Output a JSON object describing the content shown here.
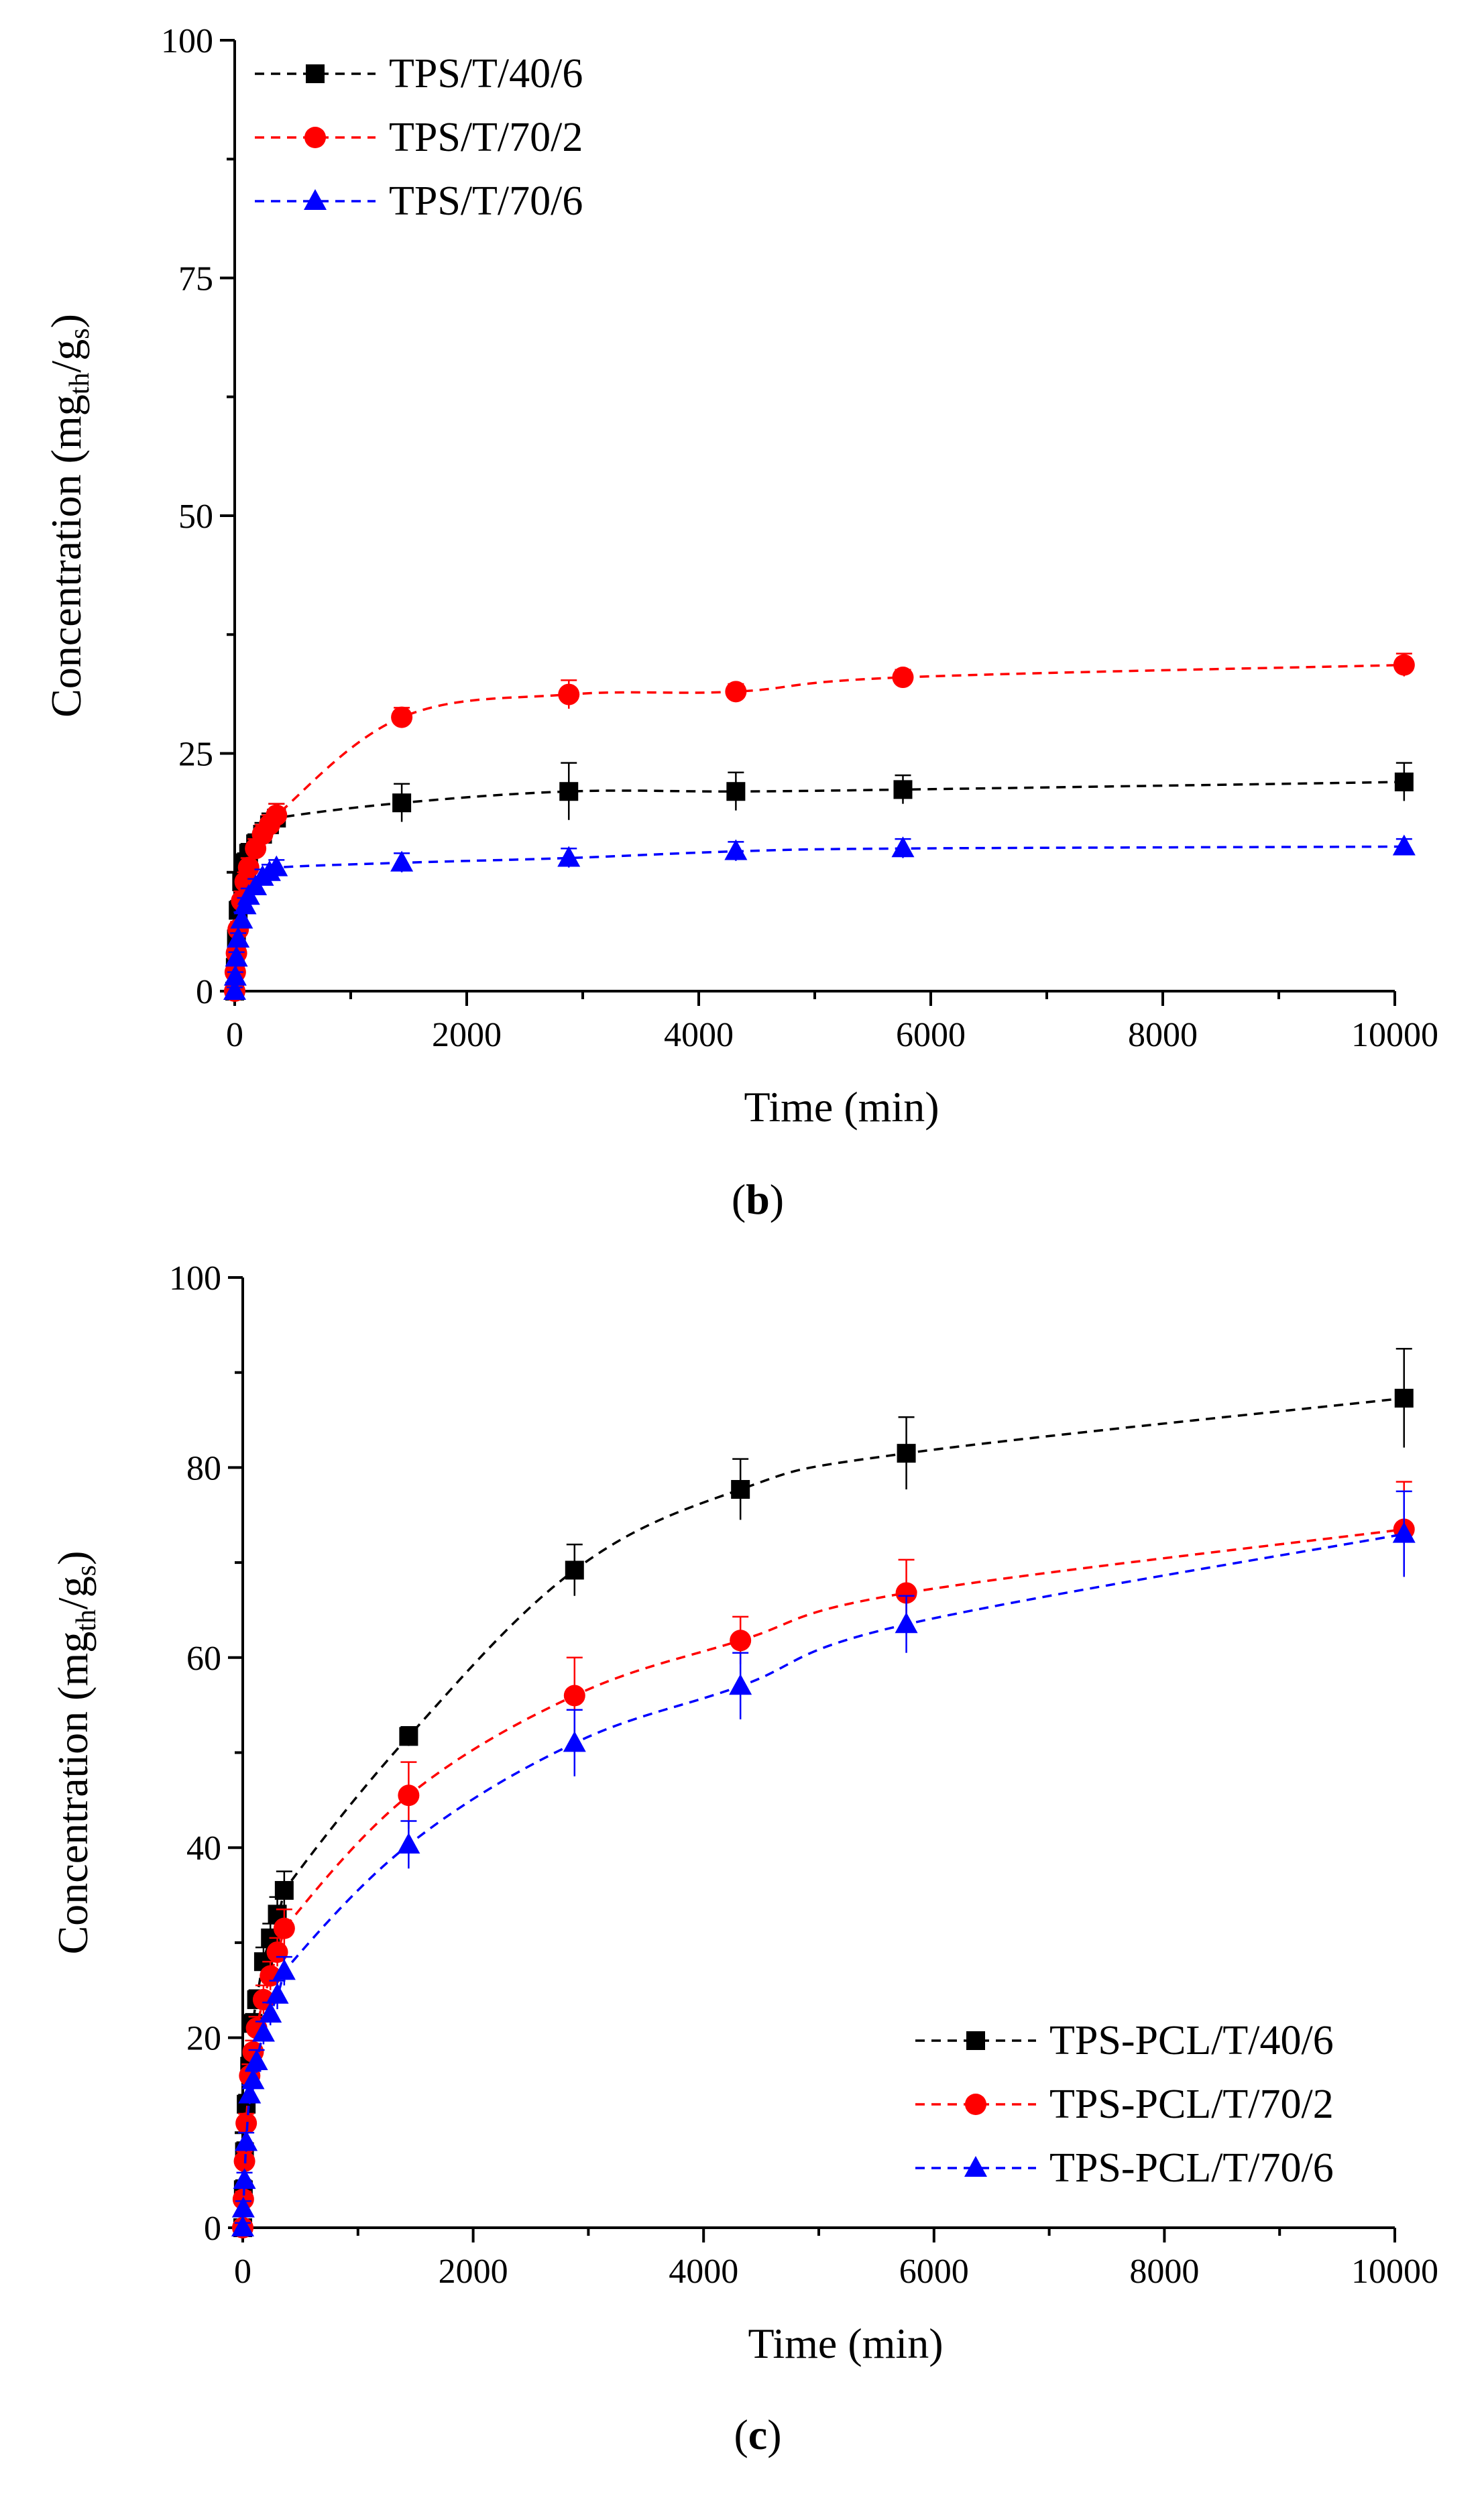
{
  "chart_data": [
    {
      "type": "line",
      "panel_label": "b",
      "xlabel": "Time (min)",
      "ylabel": {
        "main": "Concentration (mg",
        "sub1": "th",
        "mid": "/g",
        "sub2": "s",
        "end": ")"
      },
      "xlim": [
        0,
        10000
      ],
      "ylim": [
        0,
        100
      ],
      "xticks": [
        0,
        2000,
        4000,
        6000,
        8000,
        10000
      ],
      "yticks": [
        0,
        25,
        50,
        75,
        100
      ],
      "legend_position": "top-left",
      "series": [
        {
          "name": "TPS/T/40/6",
          "color": "#000000",
          "marker": "square",
          "x": [
            0,
            5,
            15,
            30,
            60,
            90,
            120,
            180,
            240,
            300,
            360,
            1440,
            2880,
            4320,
            5760,
            10080
          ],
          "y": [
            0,
            2.5,
            5.5,
            8.5,
            11.5,
            13.5,
            14.5,
            15.5,
            16.5,
            17.5,
            18.2,
            19.8,
            21.0,
            21.0,
            21.2,
            22.0
          ],
          "err": [
            0.5,
            0.6,
            0.8,
            1.0,
            1.0,
            1.0,
            1.0,
            1.0,
            1.2,
            1.2,
            1.5,
            2.0,
            3.0,
            2.0,
            1.5,
            2.0
          ]
        },
        {
          "name": "TPS/T/70/2",
          "color": "#ff0000",
          "marker": "circle",
          "x": [
            0,
            5,
            15,
            30,
            60,
            90,
            120,
            180,
            240,
            300,
            360,
            1440,
            2880,
            4320,
            5760,
            10080
          ],
          "y": [
            0,
            2.0,
            4.0,
            6.5,
            9.5,
            11.5,
            13.0,
            15.0,
            16.5,
            17.5,
            18.5,
            28.8,
            31.2,
            31.5,
            33.0,
            34.3
          ],
          "err": [
            0.5,
            0.5,
            0.6,
            0.8,
            1.0,
            1.0,
            1.0,
            1.0,
            1.0,
            1.0,
            1.2,
            1.0,
            1.5,
            0.8,
            0.8,
            1.2
          ]
        },
        {
          "name": "TPS/T/70/6",
          "color": "#0000ff",
          "marker": "triangle",
          "x": [
            0,
            5,
            15,
            30,
            60,
            90,
            120,
            180,
            240,
            300,
            360,
            1440,
            2880,
            4320,
            5760,
            10080
          ],
          "y": [
            0,
            1.5,
            3.5,
            5.5,
            7.5,
            9.0,
            10.0,
            11.0,
            12.0,
            12.5,
            13.0,
            13.5,
            14.0,
            14.7,
            15.0,
            15.2
          ],
          "err": [
            0.4,
            0.5,
            0.6,
            0.6,
            0.8,
            0.8,
            0.8,
            0.8,
            0.8,
            0.8,
            0.8,
            1.0,
            1.0,
            1.0,
            1.0,
            0.8
          ]
        }
      ]
    },
    {
      "type": "line",
      "panel_label": "c",
      "xlabel": "Time (min)",
      "ylabel": {
        "main": "Concentration (mg",
        "sub1": "th",
        "mid": "/g",
        "sub2": "s",
        "end": ")"
      },
      "xlim": [
        0,
        10000
      ],
      "ylim": [
        0,
        100
      ],
      "xticks": [
        0,
        2000,
        4000,
        6000,
        8000,
        10000
      ],
      "yticks": [
        0,
        20,
        40,
        60,
        80,
        100
      ],
      "legend_position": "bottom-right",
      "series": [
        {
          "name": "TPS-PCL/T/40/6",
          "color": "#000000",
          "marker": "square",
          "x": [
            0,
            5,
            15,
            30,
            60,
            90,
            120,
            180,
            240,
            300,
            360,
            1440,
            2880,
            4320,
            5760,
            10080
          ],
          "y": [
            0,
            4.0,
            8.0,
            13.0,
            17.0,
            21.5,
            24.0,
            28.0,
            30.5,
            33.0,
            35.5,
            51.7,
            69.2,
            77.7,
            81.5,
            87.3
          ],
          "err": [
            0.5,
            1.0,
            1.0,
            1.0,
            1.0,
            1.0,
            1.0,
            1.5,
            1.5,
            1.8,
            2.0,
            1.0,
            2.7,
            3.2,
            3.8,
            5.2
          ]
        },
        {
          "name": "TPS-PCL/T/70/2",
          "color": "#ff0000",
          "marker": "circle",
          "x": [
            0,
            5,
            15,
            30,
            60,
            90,
            120,
            180,
            240,
            300,
            360,
            1440,
            2880,
            4320,
            5760,
            10080
          ],
          "y": [
            0,
            3.0,
            7.0,
            11.0,
            16.0,
            18.5,
            21.0,
            24.0,
            26.5,
            29.0,
            31.5,
            45.5,
            56.0,
            61.8,
            66.8,
            73.5
          ],
          "err": [
            0.5,
            0.8,
            1.0,
            1.0,
            1.2,
            1.2,
            1.2,
            1.5,
            1.5,
            1.5,
            2.0,
            3.5,
            4.0,
            2.5,
            3.5,
            5.0
          ]
        },
        {
          "name": "TPS-PCL/T/70/6",
          "color": "#0000ff",
          "marker": "triangle",
          "x": [
            0,
            5,
            15,
            30,
            60,
            90,
            120,
            180,
            240,
            300,
            360,
            1440,
            2880,
            4320,
            5760,
            10080
          ],
          "y": [
            0,
            2.0,
            5.0,
            9.0,
            14.0,
            15.5,
            17.5,
            20.5,
            22.5,
            24.5,
            27.0,
            40.3,
            51.0,
            57.0,
            63.5,
            73.0
          ],
          "err": [
            0.5,
            0.8,
            0.8,
            1.0,
            1.0,
            1.0,
            1.2,
            1.2,
            1.2,
            1.5,
            1.5,
            2.5,
            3.5,
            3.5,
            3.0,
            4.5
          ]
        }
      ]
    }
  ]
}
